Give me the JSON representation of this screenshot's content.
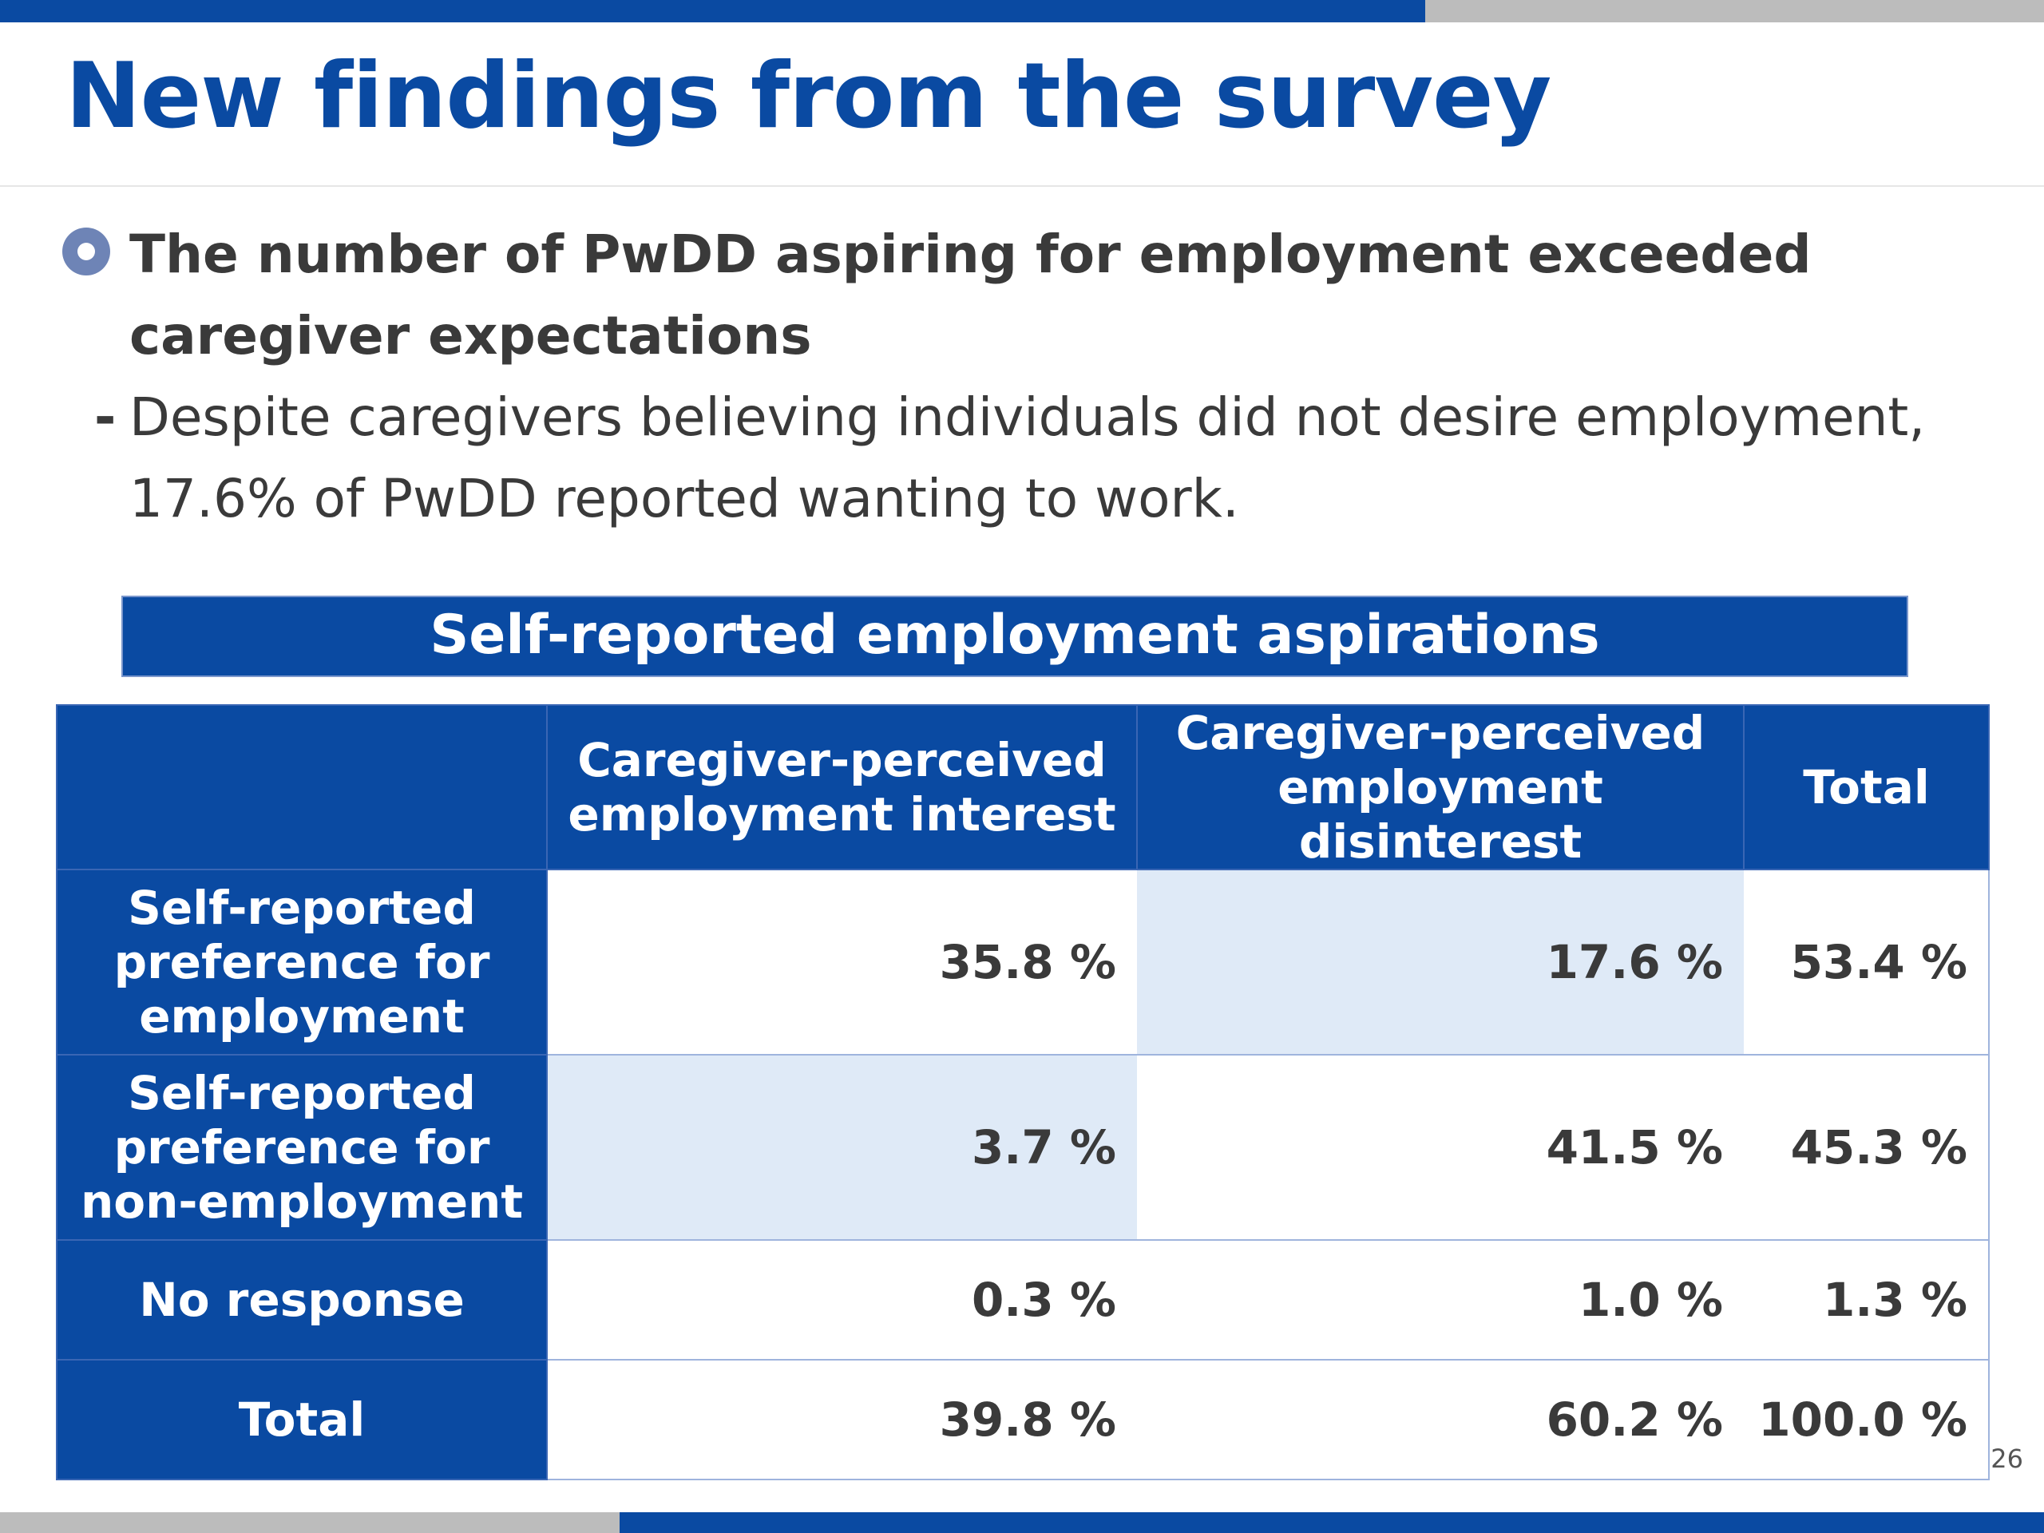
{
  "title": "New findings from the survey",
  "bullet": {
    "icon": "circle-bullet-icon",
    "text": "The number of PwDD aspiring for employment exceeded caregiver expectations"
  },
  "sub": {
    "dash": "-",
    "text": "Despite caregivers believing individuals did not desire employment, 17.6% of PwDD reported wanting to work."
  },
  "table": {
    "caption": "Self-reported employment aspirations",
    "columns": [
      "",
      "Caregiver-perceived employment interest",
      "Caregiver-perceived employment disinterest",
      "Total"
    ],
    "rows": [
      {
        "label": "Self-reported preference for employment",
        "values": [
          "35.8 %",
          "17.6 %",
          "53.4 %"
        ]
      },
      {
        "label": "Self-reported preference for non-employment",
        "values": [
          "3.7 %",
          "41.5 %",
          "45.3 %"
        ]
      },
      {
        "label": "No response",
        "values": [
          "0.3 %",
          "1.0 %",
          "1.3 %"
        ]
      },
      {
        "label": "Total",
        "values": [
          "39.8 %",
          "60.2 %",
          "100.0 %"
        ]
      }
    ]
  },
  "page_number": "26",
  "colors": {
    "brand_blue": "#0a4aa2",
    "highlight": "#dfeaf7",
    "bar_gray": "#bcbcbc"
  }
}
